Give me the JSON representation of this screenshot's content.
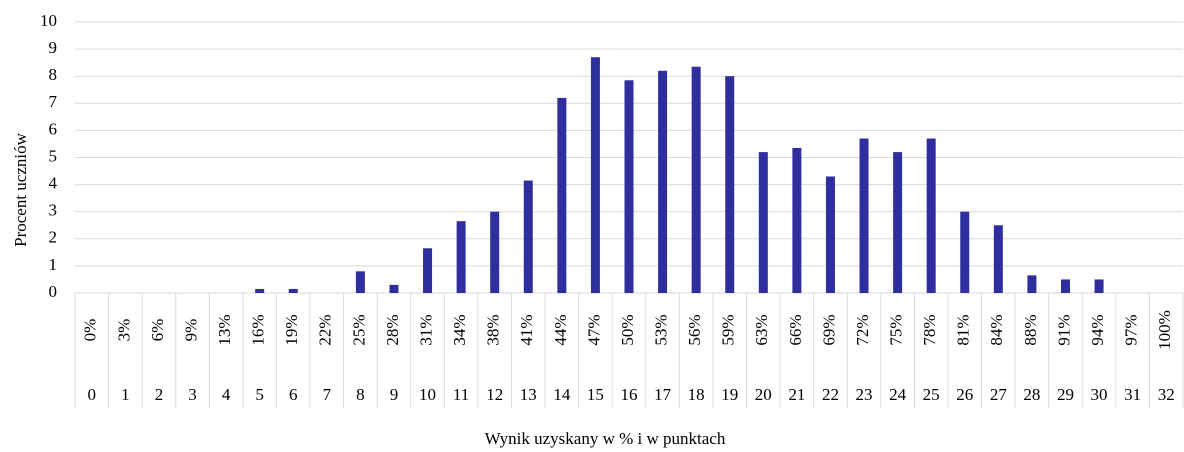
{
  "chart_data": {
    "type": "bar",
    "y_label": "Procent uczniów",
    "x_label": "Wynik uzyskany w % i w punktach",
    "categories": [
      "0%",
      "3%",
      "6%",
      "9%",
      "13%",
      "16%",
      "19%",
      "22%",
      "25%",
      "28%",
      "31%",
      "34%",
      "38%",
      "41%",
      "44%",
      "47%",
      "50%",
      "53%",
      "56%",
      "59%",
      "63%",
      "66%",
      "69%",
      "72%",
      "75%",
      "78%",
      "81%",
      "84%",
      "88%",
      "91%",
      "94%",
      "97%",
      "100%"
    ],
    "points": [
      0,
      1,
      2,
      3,
      4,
      5,
      6,
      7,
      8,
      9,
      10,
      11,
      12,
      13,
      14,
      15,
      16,
      17,
      18,
      19,
      20,
      21,
      22,
      23,
      24,
      25,
      26,
      27,
      28,
      29,
      30,
      31,
      32
    ],
    "values": [
      0,
      0,
      0,
      0,
      0,
      0.15,
      0.15,
      0,
      0.8,
      0.3,
      1.65,
      2.65,
      3.0,
      4.15,
      7.2,
      8.7,
      7.85,
      8.2,
      8.35,
      8.0,
      5.2,
      5.35,
      4.3,
      5.7,
      5.2,
      5.7,
      3.0,
      2.5,
      0.65,
      0.5,
      0.5,
      0,
      0
    ],
    "color": "#2e2e9e",
    "ylim": [
      0,
      10
    ],
    "yticks": [
      0,
      1,
      2,
      3,
      4,
      5,
      6,
      7,
      8,
      9,
      10
    ],
    "grid": true
  }
}
